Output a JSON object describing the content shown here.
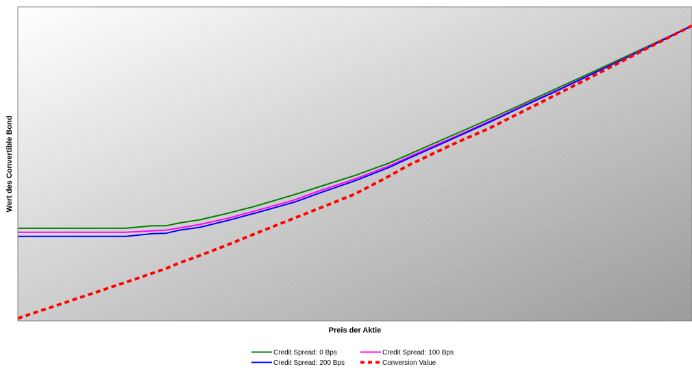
{
  "chart_data": {
    "type": "line",
    "title": "",
    "xlabel": "Preis der Aktie",
    "ylabel": "Wert des Convertible Bond",
    "xlim": [
      0,
      100
    ],
    "ylim": [
      0,
      100
    ],
    "grid": false,
    "legend_position": "bottom",
    "background": {
      "from": "#ffffff",
      "to": "#9a9a9a",
      "border": "#808080"
    },
    "x": [
      0,
      16,
      20,
      22,
      24,
      27,
      31,
      35,
      41,
      45,
      50,
      55,
      58,
      62,
      65,
      70,
      75,
      80,
      85,
      90,
      95,
      100
    ],
    "series": [
      {
        "name": "Credit Spread: 0 Bps",
        "color": "#008000",
        "dash": "solid",
        "values": [
          29.5,
          29.5,
          30.3,
          30.3,
          31.2,
          32.2,
          34.2,
          36.4,
          40.2,
          42.9,
          46.3,
          50.2,
          53.0,
          56.8,
          59.6,
          64.3,
          69.2,
          74.1,
          79.0,
          84.0,
          89.0,
          94.0
        ]
      },
      {
        "name": "Credit Spread: 100 Bps",
        "color": "#ff00ff",
        "dash": "solid",
        "values": [
          28.2,
          28.2,
          28.7,
          28.9,
          29.6,
          30.7,
          32.6,
          34.9,
          38.5,
          41.6,
          45.2,
          49.3,
          52.2,
          56.0,
          58.8,
          63.6,
          68.6,
          73.5,
          78.5,
          83.6,
          88.8,
          94.0
        ]
      },
      {
        "name": "Credit Spread: 200 Bps",
        "color": "#0000ff",
        "dash": "solid",
        "values": [
          26.9,
          26.9,
          27.8,
          27.9,
          28.9,
          29.8,
          31.9,
          34.2,
          37.8,
          40.9,
          44.6,
          48.8,
          51.8,
          55.6,
          58.5,
          63.3,
          68.4,
          73.3,
          78.4,
          83.5,
          88.7,
          94.0
        ]
      },
      {
        "name": "Conversion Value",
        "color": "#ff0000",
        "dash": "dashed",
        "values": [
          0.8,
          12.3,
          15.2,
          16.7,
          18.5,
          20.8,
          24.1,
          27.6,
          32.7,
          36.1,
          40.4,
          46.0,
          49.6,
          53.7,
          56.7,
          61.4,
          66.8,
          72.2,
          77.6,
          83.1,
          88.6,
          94.0
        ]
      }
    ]
  }
}
